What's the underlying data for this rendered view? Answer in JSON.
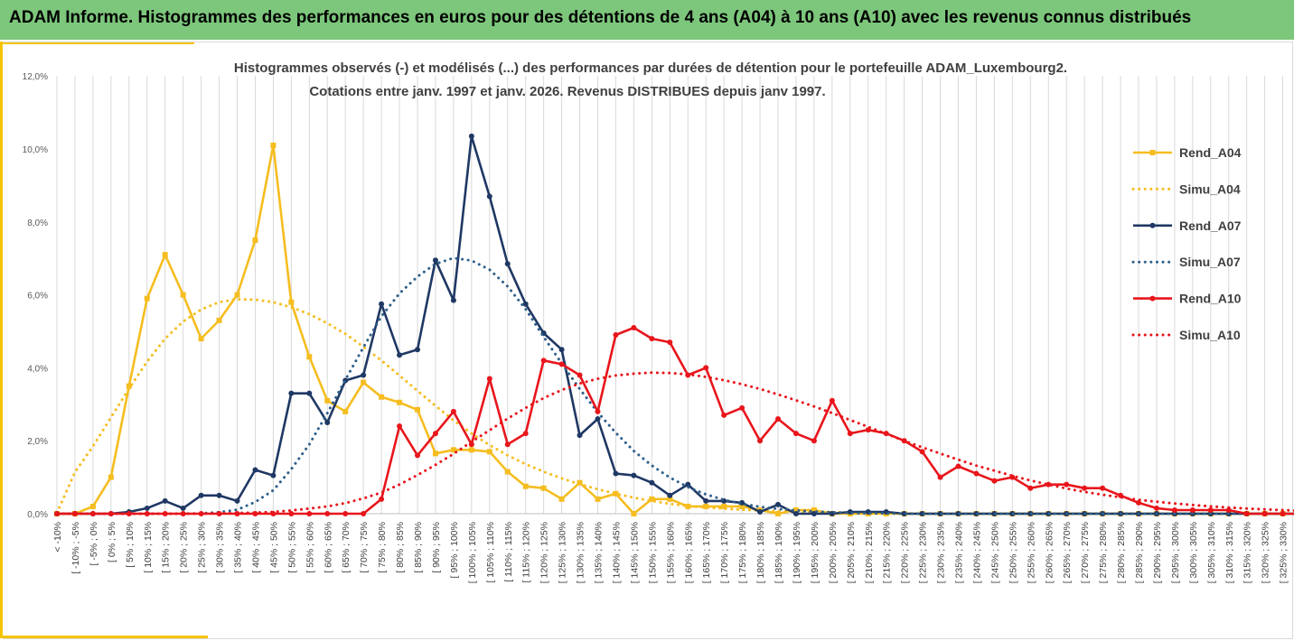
{
  "page": {
    "banner_title": "ADAM Informe. Histogrammes des performances en euros pour des détentions de 4 ans (A04) à 10 ans (A10) avec les revenus connus distribués"
  },
  "chart_data": {
    "type": "line",
    "title": "Histogrammes observés (-) et modélisés (...) des performances par durées de détention pour le portefeuille ADAM_Luxembourg2.",
    "subtitle": "Cotations entre janv. 1997 et janv. 2026. Revenus DISTRIBUES depuis janv 1997.",
    "xlabel": "",
    "ylabel": "",
    "ylim": [
      0,
      12
    ],
    "yticks": [
      0,
      2,
      4,
      6,
      8,
      10,
      12
    ],
    "ytick_labels": [
      "0,0%",
      "2,0%",
      "4,0%",
      "6,0%",
      "8,0%",
      "10,0%",
      "12,0%"
    ],
    "grid": "vertical",
    "legend_position": "right",
    "categories": [
      "< -10%",
      "[ -10% ; -5%",
      "[ -5% ; 0%",
      "[ 0% ; 5%",
      "[ 5% ; 10%",
      "[ 10% ; 15%",
      "[ 15% ; 20%",
      "[ 20% ; 25%",
      "[ 25% ; 30%",
      "[ 30% ; 35%",
      "[ 35% ; 40%",
      "[ 40% ; 45%",
      "[ 45% ; 50%",
      "[ 50% ; 55%",
      "[ 55% ; 60%",
      "[ 60% ; 65%",
      "[ 65% ; 70%",
      "[ 70% ; 75%",
      "[ 75% ; 80%",
      "[ 80% ; 85%",
      "[ 85% ; 90%",
      "[ 90% ; 95%",
      "[ 95% ; 100%",
      "[ 100% ; 105%",
      "[ 105% ; 110%",
      "[ 110% ; 115%",
      "[ 115% ; 120%",
      "[ 120% ; 125%",
      "[ 125% ; 130%",
      "[ 130% ; 135%",
      "[ 135% ; 140%",
      "[ 140% ; 145%",
      "[ 145% ; 150%",
      "[ 150% ; 155%",
      "[ 155% ; 160%",
      "[ 160% ; 165%",
      "[ 165% ; 170%",
      "[ 170% ; 175%",
      "[ 175% ; 180%",
      "[ 180% ; 185%",
      "[ 185% ; 190%",
      "[ 190% ; 195%",
      "[ 195% ; 200%",
      "[ 200% ; 205%",
      "[ 205% ; 210%",
      "[ 210% ; 215%",
      "[ 215% ; 220%",
      "[ 220% ; 225%",
      "[ 225% ; 230%",
      "[ 230% ; 235%",
      "[ 235% ; 240%",
      "[ 240% ; 245%",
      "[ 245% ; 250%",
      "[ 250% ; 255%",
      "[ 255% ; 260%",
      "[ 260% ; 265%",
      "[ 265% ; 270%",
      "[ 270% ; 275%",
      "[ 275% ; 280%",
      "[ 280% ; 285%",
      "[ 285% ; 290%",
      "[ 290% ; 295%",
      "[ 295% ; 300%",
      "[ 300% ; 305%",
      "[ 305% ; 310%",
      "[ 310% ; 315%",
      "[ 315% ; 320%",
      "[ 320% ; 325%",
      "[ 325% ; 330%",
      "> 330%"
    ],
    "series": [
      {
        "name": "Rend_A04",
        "style": "solid",
        "color": "#f5bd1f",
        "values": [
          0,
          0,
          0.2,
          1.0,
          3.5,
          5.9,
          7.1,
          6.0,
          4.8,
          5.3,
          6.0,
          7.5,
          10.1,
          5.8,
          4.3,
          3.1,
          2.8,
          3.6,
          3.2,
          3.05,
          2.85,
          1.65,
          1.75,
          1.75,
          1.7,
          1.15,
          0.75,
          0.7,
          0.4,
          0.85,
          0.4,
          0.55,
          0,
          0.4,
          0.4,
          0.2,
          0.2,
          0.2,
          0.2,
          0.1,
          0,
          0.1,
          0.1,
          0,
          0,
          0,
          0,
          0,
          0,
          0,
          0,
          0,
          0,
          0,
          0,
          0,
          0,
          0,
          0,
          0,
          0,
          0,
          0,
          0,
          0,
          0,
          0,
          0,
          0,
          0
        ]
      },
      {
        "name": "Simu_A04",
        "style": "dotted",
        "color": "#f5bd1f",
        "values": [
          0.02,
          1.14,
          1.85,
          2.64,
          3.43,
          4.17,
          4.8,
          5.27,
          5.6,
          5.8,
          5.88,
          5.87,
          5.8,
          5.66,
          5.47,
          5.22,
          4.93,
          4.58,
          4.2,
          3.79,
          3.37,
          2.96,
          2.56,
          2.2,
          1.88,
          1.6,
          1.36,
          1.15,
          0.97,
          0.81,
          0.67,
          0.55,
          0.44,
          0.35,
          0.27,
          0.21,
          0.17,
          0.14,
          0.11,
          0.09,
          0.07,
          0.06,
          0.05,
          0.04,
          0.03,
          0.02,
          0.01,
          0.01,
          0,
          0,
          0,
          0,
          0,
          0,
          0,
          0,
          0,
          0,
          0,
          0,
          0,
          0,
          0,
          0,
          0,
          0,
          0,
          0,
          0,
          0
        ]
      },
      {
        "name": "Rend_A07",
        "style": "solid",
        "color": "#1f3864",
        "values": [
          0,
          0,
          0,
          0,
          0.05,
          0.15,
          0.35,
          0.15,
          0.5,
          0.5,
          0.35,
          1.2,
          1.05,
          3.3,
          3.3,
          2.5,
          3.65,
          3.8,
          5.75,
          4.35,
          4.5,
          6.95,
          5.85,
          10.35,
          8.7,
          6.85,
          5.75,
          4.95,
          4.5,
          2.15,
          2.6,
          1.1,
          1.05,
          0.85,
          0.5,
          0.8,
          0.35,
          0.35,
          0.3,
          0.05,
          0.25,
          0,
          0,
          0,
          0.05,
          0.05,
          0.05,
          0,
          0,
          0,
          0,
          0,
          0,
          0,
          0,
          0,
          0,
          0,
          0,
          0,
          0,
          0,
          0,
          0,
          0,
          0,
          0,
          0,
          0,
          0
        ]
      },
      {
        "name": "Simu_A07",
        "style": "dotted",
        "color": "#2e5f8a",
        "values": [
          0,
          0,
          0,
          0,
          0,
          0,
          0,
          0,
          0.01,
          0.04,
          0.11,
          0.32,
          0.64,
          1.22,
          1.9,
          2.76,
          3.67,
          4.56,
          5.41,
          6.04,
          6.5,
          6.85,
          7.01,
          6.94,
          6.69,
          6.23,
          5.61,
          4.85,
          4.12,
          3.42,
          2.78,
          2.22,
          1.72,
          1.32,
          0.99,
          0.73,
          0.53,
          0.38,
          0.27,
          0.19,
          0.13,
          0.09,
          0.06,
          0.04,
          0.02,
          0.01,
          0.01,
          0,
          0,
          0,
          0,
          0,
          0,
          0,
          0,
          0,
          0,
          0,
          0,
          0,
          0,
          0,
          0,
          0,
          0,
          0,
          0,
          0,
          0,
          0
        ]
      },
      {
        "name": "Rend_A10",
        "style": "solid",
        "color": "#e8151b",
        "values": [
          0,
          0,
          0,
          0,
          0,
          0,
          0,
          0,
          0,
          0,
          0,
          0,
          0,
          0,
          0,
          0,
          0,
          0,
          0.4,
          2.4,
          1.6,
          2.2,
          2.8,
          1.9,
          3.7,
          1.9,
          2.2,
          4.2,
          4.1,
          3.8,
          2.8,
          4.9,
          5.1,
          4.8,
          4.7,
          3.8,
          4.0,
          2.7,
          2.9,
          2.0,
          2.6,
          2.2,
          2.0,
          3.1,
          2.2,
          2.3,
          2.2,
          2.0,
          1.7,
          1.0,
          1.3,
          1.1,
          0.9,
          1.0,
          0.7,
          0.8,
          0.8,
          0.7,
          0.7,
          0.5,
          0.3,
          0.15,
          0.1,
          0.1,
          0.1,
          0.1,
          0,
          0,
          0,
          0
        ]
      },
      {
        "name": "Simu_A10",
        "style": "dotted",
        "color": "#e8151b",
        "values": [
          0,
          0,
          0,
          0,
          0,
          0,
          0,
          0,
          0,
          0.01,
          0.02,
          0.03,
          0.05,
          0.09,
          0.14,
          0.2,
          0.29,
          0.42,
          0.58,
          0.8,
          1.06,
          1.34,
          1.64,
          1.97,
          2.29,
          2.61,
          2.9,
          3.17,
          3.39,
          3.57,
          3.7,
          3.79,
          3.84,
          3.87,
          3.86,
          3.82,
          3.75,
          3.66,
          3.55,
          3.42,
          3.27,
          3.11,
          2.94,
          2.76,
          2.57,
          2.38,
          2.19,
          2.0,
          1.82,
          1.65,
          1.48,
          1.32,
          1.18,
          1.04,
          0.91,
          0.8,
          0.69,
          0.6,
          0.52,
          0.45,
          0.38,
          0.33,
          0.28,
          0.24,
          0.2,
          0.17,
          0.14,
          0.12,
          0.1,
          0.08
        ]
      }
    ]
  }
}
